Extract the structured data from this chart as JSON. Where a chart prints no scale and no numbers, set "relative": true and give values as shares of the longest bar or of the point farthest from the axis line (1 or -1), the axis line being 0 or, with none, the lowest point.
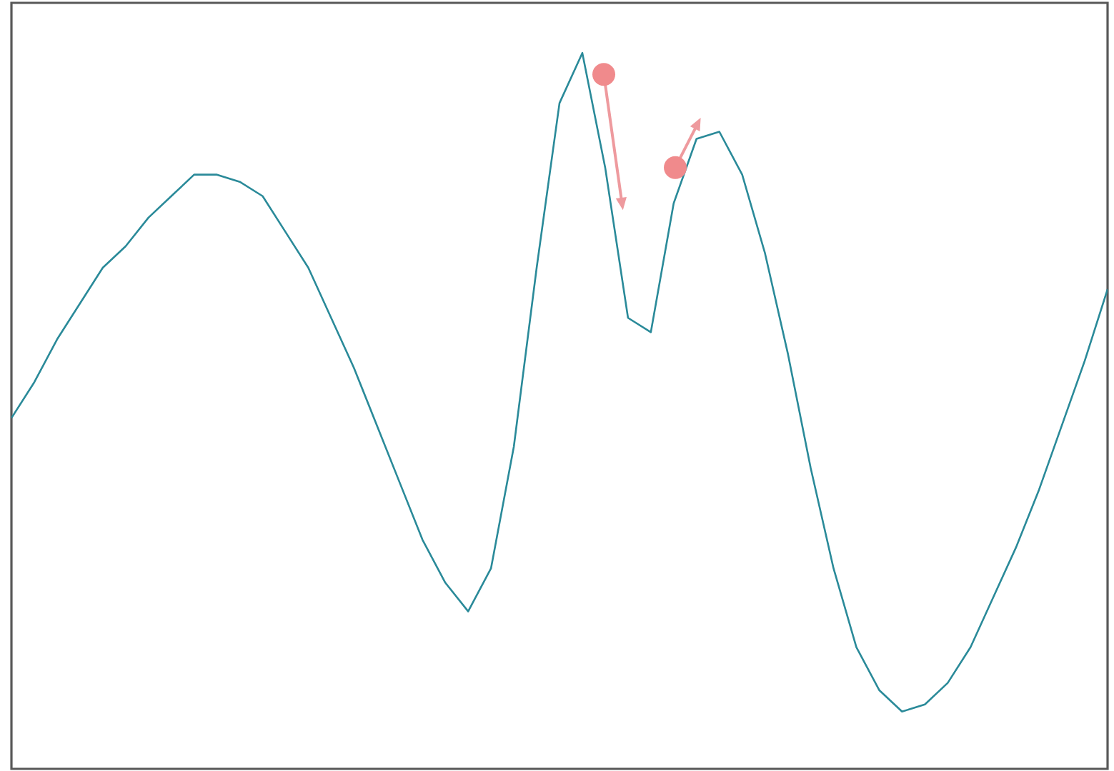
{
  "chart_data": {
    "type": "line",
    "relative": true,
    "color": "#2a8a99",
    "categories": [
      null,
      null,
      null,
      null,
      null,
      null,
      null,
      null,
      null,
      null,
      null,
      null,
      null,
      null,
      null,
      null,
      null,
      null,
      null,
      null,
      null,
      null,
      null,
      null,
      null,
      null,
      null,
      null,
      null,
      null,
      null,
      null,
      null,
      null,
      null,
      null,
      null,
      null,
      null,
      null,
      null,
      null,
      null,
      null,
      null,
      null,
      null,
      null,
      null
    ],
    "values": [
      0.49,
      0.54,
      0.6,
      0.65,
      0.7,
      0.73,
      0.77,
      0.8,
      0.83,
      0.83,
      0.82,
      0.8,
      0.75,
      0.7,
      0.63,
      0.56,
      0.48,
      0.4,
      0.32,
      0.26,
      0.22,
      0.28,
      0.45,
      0.7,
      0.93,
      1.0,
      0.84,
      0.63,
      0.61,
      0.79,
      0.88,
      0.89,
      0.83,
      0.72,
      0.58,
      0.42,
      0.28,
      0.17,
      0.11,
      0.08,
      0.09,
      0.12,
      0.17,
      0.24,
      0.31,
      0.39,
      0.48,
      0.57,
      0.67
    ]
  }
}
